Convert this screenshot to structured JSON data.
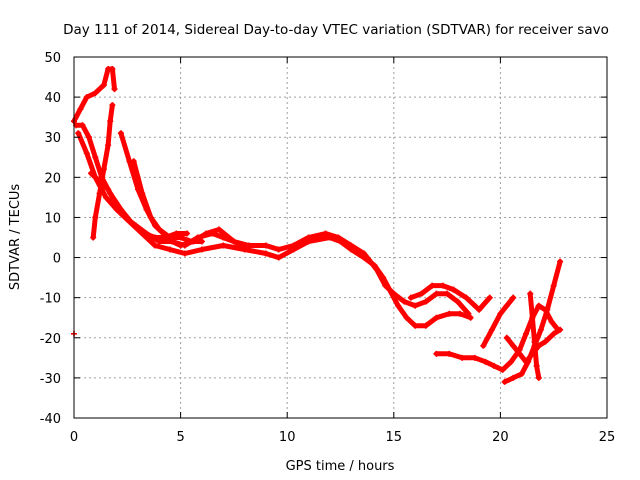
{
  "chart_data": {
    "type": "scatter",
    "title": "Day 111 of 2014, Sidereal Day-to-day VTEC variation (SDTVAR) for receiver savo",
    "xlabel": "GPS time / hours",
    "ylabel": "SDTVAR / TECUs",
    "xlim": [
      0,
      25
    ],
    "ylim": [
      -40,
      50
    ],
    "xticks": [
      "0",
      "5",
      "10",
      "15",
      "20",
      "25"
    ],
    "yticks": [
      "-40",
      "-30",
      "-20",
      "-10",
      "0",
      "10",
      "20",
      "30",
      "40",
      "50"
    ],
    "grid": true,
    "marker": "plus",
    "color": "#ff0000",
    "series": [
      {
        "values": [
          [
            0,
            34
          ],
          [
            0.3,
            37
          ],
          [
            0.6,
            40
          ],
          [
            1.0,
            41
          ],
          [
            1.4,
            43
          ],
          [
            1.6,
            47
          ],
          [
            1.8,
            47
          ],
          [
            1.9,
            42
          ]
        ]
      },
      {
        "values": [
          [
            0.1,
            33
          ],
          [
            0.4,
            33
          ],
          [
            0.7,
            30
          ],
          [
            1.0,
            25
          ],
          [
            1.3,
            20
          ],
          [
            1.7,
            16
          ],
          [
            2.2,
            12
          ],
          [
            2.8,
            8
          ],
          [
            3.3,
            6
          ],
          [
            3.8,
            5
          ],
          [
            4.3,
            5
          ],
          [
            4.8,
            6
          ],
          [
            5.3,
            6
          ]
        ]
      },
      {
        "values": [
          [
            0.2,
            31
          ],
          [
            0.6,
            26
          ],
          [
            1.0,
            20
          ],
          [
            1.5,
            15
          ],
          [
            2.0,
            12
          ],
          [
            2.6,
            9
          ],
          [
            3.2,
            6
          ],
          [
            3.8,
            3
          ],
          [
            4.5,
            2
          ],
          [
            5.2,
            1
          ],
          [
            6.0,
            2
          ],
          [
            7.0,
            3
          ],
          [
            8.0,
            2
          ],
          [
            9.0,
            1
          ],
          [
            9.6,
            0
          ],
          [
            10.3,
            2
          ],
          [
            11.0,
            4
          ],
          [
            12.0,
            5
          ],
          [
            12.5,
            4
          ],
          [
            13.0,
            2
          ],
          [
            13.6,
            0
          ],
          [
            14.1,
            -2
          ],
          [
            14.5,
            -5
          ],
          [
            14.8,
            -8
          ],
          [
            15.2,
            -12
          ],
          [
            15.6,
            -15
          ],
          [
            16.0,
            -17
          ],
          [
            16.5,
            -17
          ],
          [
            17.0,
            -15
          ],
          [
            17.6,
            -14
          ],
          [
            18.1,
            -14
          ],
          [
            18.6,
            -15
          ]
        ]
      },
      {
        "values": [
          [
            0.8,
            21
          ],
          [
            1.2,
            19
          ],
          [
            1.6,
            17
          ],
          [
            2.0,
            13
          ],
          [
            2.4,
            10
          ],
          [
            2.9,
            8
          ],
          [
            3.4,
            6
          ],
          [
            4.0,
            4
          ],
          [
            4.6,
            4
          ],
          [
            5.2,
            3
          ],
          [
            5.8,
            5
          ],
          [
            6.5,
            6
          ],
          [
            7.0,
            5
          ],
          [
            7.5,
            4
          ],
          [
            8.2,
            3
          ],
          [
            9.0,
            3
          ],
          [
            9.6,
            2
          ],
          [
            10.3,
            3
          ],
          [
            11.0,
            5
          ],
          [
            11.8,
            6
          ],
          [
            12.4,
            5
          ],
          [
            13.0,
            3
          ],
          [
            13.6,
            1
          ],
          [
            14.2,
            -3
          ],
          [
            14.6,
            -7
          ],
          [
            15.0,
            -9
          ],
          [
            15.5,
            -11
          ],
          [
            16.0,
            -12
          ],
          [
            16.5,
            -11
          ],
          [
            17.0,
            -9
          ],
          [
            17.5,
            -9
          ],
          [
            18.0,
            -11
          ],
          [
            18.5,
            -14
          ]
        ]
      },
      {
        "values": [
          [
            0.9,
            5
          ],
          [
            1.0,
            10
          ],
          [
            1.2,
            16
          ],
          [
            1.4,
            22
          ],
          [
            1.6,
            28
          ],
          [
            1.7,
            34
          ],
          [
            1.8,
            38
          ]
        ]
      },
      {
        "values": [
          [
            2.2,
            31
          ],
          [
            2.6,
            24
          ],
          [
            3.0,
            17
          ],
          [
            3.4,
            12
          ],
          [
            3.8,
            8
          ],
          [
            4.2,
            6
          ],
          [
            4.6,
            4
          ],
          [
            5.0,
            3
          ],
          [
            5.6,
            4
          ],
          [
            6.2,
            6
          ],
          [
            6.8,
            7
          ],
          [
            7.5,
            4
          ],
          [
            8.2,
            2
          ]
        ]
      },
      {
        "values": [
          [
            2.8,
            24
          ],
          [
            3.2,
            16
          ],
          [
            3.6,
            10
          ],
          [
            4.0,
            7
          ],
          [
            4.5,
            5
          ],
          [
            5.0,
            5
          ],
          [
            5.5,
            4
          ],
          [
            6.0,
            4
          ]
        ]
      },
      {
        "values": [
          [
            15.8,
            -10
          ],
          [
            16.3,
            -9
          ],
          [
            16.8,
            -7
          ],
          [
            17.3,
            -7
          ],
          [
            17.8,
            -8
          ],
          [
            18.4,
            -10
          ],
          [
            19.0,
            -13
          ],
          [
            19.5,
            -10
          ]
        ]
      },
      {
        "values": [
          [
            17.0,
            -24
          ],
          [
            17.6,
            -24
          ],
          [
            18.2,
            -25
          ],
          [
            18.8,
            -25
          ],
          [
            19.3,
            -26
          ],
          [
            19.7,
            -27
          ],
          [
            20.1,
            -28
          ],
          [
            20.5,
            -26
          ],
          [
            20.9,
            -23
          ],
          [
            21.2,
            -19
          ],
          [
            21.5,
            -15
          ],
          [
            21.8,
            -12
          ],
          [
            22.1,
            -13
          ],
          [
            22.4,
            -16
          ],
          [
            22.7,
            -18
          ]
        ]
      },
      {
        "values": [
          [
            19.2,
            -22
          ],
          [
            19.6,
            -18
          ],
          [
            20.0,
            -14
          ],
          [
            20.3,
            -12
          ],
          [
            20.6,
            -10
          ]
        ]
      },
      {
        "values": [
          [
            20.2,
            -31
          ],
          [
            20.6,
            -30
          ],
          [
            21.0,
            -29
          ],
          [
            21.3,
            -26
          ],
          [
            21.6,
            -22
          ],
          [
            21.9,
            -18
          ],
          [
            22.2,
            -13
          ],
          [
            22.5,
            -7
          ],
          [
            22.8,
            -1
          ]
        ]
      },
      {
        "values": [
          [
            20.3,
            -20
          ],
          [
            20.6,
            -22
          ],
          [
            20.9,
            -24
          ],
          [
            21.2,
            -26
          ],
          [
            21.5,
            -24
          ],
          [
            21.8,
            -22
          ],
          [
            22.1,
            -21
          ],
          [
            22.5,
            -19
          ],
          [
            22.8,
            -18
          ]
        ]
      },
      {
        "values": [
          [
            21.4,
            -9
          ],
          [
            21.5,
            -15
          ],
          [
            21.6,
            -21
          ],
          [
            21.7,
            -27
          ],
          [
            21.8,
            -30
          ]
        ]
      },
      {
        "values": [
          [
            0.0,
            -19
          ]
        ]
      }
    ]
  }
}
